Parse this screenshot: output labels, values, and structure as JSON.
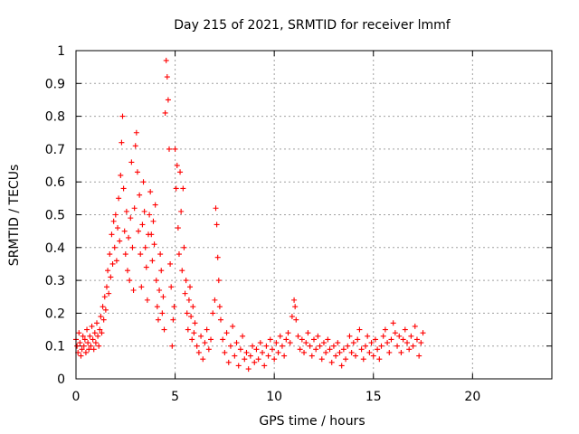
{
  "chart_data": {
    "type": "scatter",
    "title": "Day 215 of 2021, SRMTID for receiver lmmf",
    "xlabel": "GPS time / hours",
    "ylabel": "SRMTID / TECUs",
    "xlim": [
      0,
      24
    ],
    "ylim": [
      0,
      1
    ],
    "xticks": [
      "0",
      "5",
      "10",
      "15",
      "20"
    ],
    "yticks": [
      "0",
      "0.1",
      "0.2",
      "0.3",
      "0.4",
      "0.5",
      "0.6",
      "0.7",
      "0.8",
      "0.9",
      "1"
    ],
    "grid": true,
    "marker": "+",
    "color": "#ff0000",
    "series": [
      {
        "name": "SRMTID",
        "points": [
          [
            0.0,
            0.12
          ],
          [
            0.05,
            0.1
          ],
          [
            0.1,
            0.08
          ],
          [
            0.15,
            0.14
          ],
          [
            0.2,
            0.11
          ],
          [
            0.25,
            0.07
          ],
          [
            0.3,
            0.09
          ],
          [
            0.35,
            0.13
          ],
          [
            0.4,
            0.1
          ],
          [
            0.45,
            0.12
          ],
          [
            0.5,
            0.08
          ],
          [
            0.55,
            0.15
          ],
          [
            0.6,
            0.11
          ],
          [
            0.65,
            0.09
          ],
          [
            0.7,
            0.13
          ],
          [
            0.75,
            0.1
          ],
          [
            0.8,
            0.16
          ],
          [
            0.85,
            0.12
          ],
          [
            0.9,
            0.09
          ],
          [
            0.95,
            0.14
          ],
          [
            1.0,
            0.11
          ],
          [
            1.05,
            0.17
          ],
          [
            1.1,
            0.13
          ],
          [
            1.15,
            0.1
          ],
          [
            1.2,
            0.15
          ],
          [
            1.25,
            0.19
          ],
          [
            1.3,
            0.14
          ],
          [
            1.35,
            0.22
          ],
          [
            1.4,
            0.18
          ],
          [
            1.45,
            0.25
          ],
          [
            1.5,
            0.21
          ],
          [
            1.55,
            0.28
          ],
          [
            1.6,
            0.33
          ],
          [
            1.65,
            0.26
          ],
          [
            1.7,
            0.38
          ],
          [
            1.75,
            0.31
          ],
          [
            1.8,
            0.44
          ],
          [
            1.85,
            0.35
          ],
          [
            1.9,
            0.48
          ],
          [
            1.95,
            0.4
          ],
          [
            2.0,
            0.5
          ],
          [
            2.05,
            0.36
          ],
          [
            2.1,
            0.46
          ],
          [
            2.15,
            0.55
          ],
          [
            2.2,
            0.42
          ],
          [
            2.25,
            0.62
          ],
          [
            2.3,
            0.72
          ],
          [
            2.35,
            0.8
          ],
          [
            2.4,
            0.58
          ],
          [
            2.45,
            0.45
          ],
          [
            2.5,
            0.38
          ],
          [
            2.55,
            0.51
          ],
          [
            2.6,
            0.33
          ],
          [
            2.65,
            0.43
          ],
          [
            2.7,
            0.3
          ],
          [
            2.75,
            0.49
          ],
          [
            2.8,
            0.66
          ],
          [
            2.85,
            0.4
          ],
          [
            2.9,
            0.27
          ],
          [
            2.95,
            0.52
          ],
          [
            3.0,
            0.71
          ],
          [
            3.05,
            0.75
          ],
          [
            3.1,
            0.63
          ],
          [
            3.15,
            0.45
          ],
          [
            3.2,
            0.56
          ],
          [
            3.25,
            0.38
          ],
          [
            3.3,
            0.28
          ],
          [
            3.35,
            0.47
          ],
          [
            3.4,
            0.6
          ],
          [
            3.45,
            0.51
          ],
          [
            3.5,
            0.4
          ],
          [
            3.55,
            0.34
          ],
          [
            3.6,
            0.24
          ],
          [
            3.65,
            0.44
          ],
          [
            3.7,
            0.5
          ],
          [
            3.75,
            0.57
          ],
          [
            3.8,
            0.44
          ],
          [
            3.85,
            0.36
          ],
          [
            3.9,
            0.48
          ],
          [
            3.95,
            0.41
          ],
          [
            4.0,
            0.53
          ],
          [
            4.05,
            0.3
          ],
          [
            4.1,
            0.22
          ],
          [
            4.15,
            0.18
          ],
          [
            4.2,
            0.27
          ],
          [
            4.25,
            0.38
          ],
          [
            4.3,
            0.33
          ],
          [
            4.35,
            0.2
          ],
          [
            4.4,
            0.25
          ],
          [
            4.45,
            0.15
          ],
          [
            4.5,
            0.81
          ],
          [
            4.55,
            0.97
          ],
          [
            4.6,
            0.92
          ],
          [
            4.65,
            0.85
          ],
          [
            4.7,
            0.7
          ],
          [
            4.75,
            0.35
          ],
          [
            4.8,
            0.28
          ],
          [
            4.85,
            0.1
          ],
          [
            4.9,
            0.18
          ],
          [
            4.95,
            0.22
          ],
          [
            5.0,
            0.7
          ],
          [
            5.05,
            0.58
          ],
          [
            5.1,
            0.65
          ],
          [
            5.15,
            0.46
          ],
          [
            5.2,
            0.38
          ],
          [
            5.25,
            0.63
          ],
          [
            5.3,
            0.51
          ],
          [
            5.35,
            0.33
          ],
          [
            5.4,
            0.58
          ],
          [
            5.45,
            0.4
          ],
          [
            5.5,
            0.26
          ],
          [
            5.55,
            0.3
          ],
          [
            5.6,
            0.2
          ],
          [
            5.65,
            0.15
          ],
          [
            5.7,
            0.24
          ],
          [
            5.75,
            0.28
          ],
          [
            5.8,
            0.19
          ],
          [
            5.85,
            0.12
          ],
          [
            5.9,
            0.22
          ],
          [
            5.95,
            0.14
          ],
          [
            6.0,
            0.17
          ],
          [
            6.1,
            0.1
          ],
          [
            6.2,
            0.08
          ],
          [
            6.3,
            0.13
          ],
          [
            6.4,
            0.06
          ],
          [
            6.5,
            0.11
          ],
          [
            6.6,
            0.15
          ],
          [
            6.7,
            0.09
          ],
          [
            6.8,
            0.12
          ],
          [
            6.9,
            0.2
          ],
          [
            7.0,
            0.24
          ],
          [
            7.05,
            0.52
          ],
          [
            7.1,
            0.47
          ],
          [
            7.15,
            0.37
          ],
          [
            7.2,
            0.3
          ],
          [
            7.25,
            0.22
          ],
          [
            7.3,
            0.18
          ],
          [
            7.4,
            0.12
          ],
          [
            7.5,
            0.08
          ],
          [
            7.6,
            0.14
          ],
          [
            7.7,
            0.05
          ],
          [
            7.8,
            0.1
          ],
          [
            7.9,
            0.16
          ],
          [
            8.0,
            0.07
          ],
          [
            8.1,
            0.11
          ],
          [
            8.2,
            0.04
          ],
          [
            8.3,
            0.09
          ],
          [
            8.4,
            0.13
          ],
          [
            8.5,
            0.06
          ],
          [
            8.6,
            0.08
          ],
          [
            8.7,
            0.03
          ],
          [
            8.8,
            0.07
          ],
          [
            8.9,
            0.1
          ],
          [
            9.0,
            0.05
          ],
          [
            9.1,
            0.09
          ],
          [
            9.2,
            0.06
          ],
          [
            9.3,
            0.11
          ],
          [
            9.4,
            0.08
          ],
          [
            9.5,
            0.04
          ],
          [
            9.6,
            0.1
          ],
          [
            9.7,
            0.07
          ],
          [
            9.8,
            0.12
          ],
          [
            9.9,
            0.09
          ],
          [
            10.0,
            0.06
          ],
          [
            10.1,
            0.11
          ],
          [
            10.2,
            0.08
          ],
          [
            10.3,
            0.13
          ],
          [
            10.4,
            0.1
          ],
          [
            10.5,
            0.07
          ],
          [
            10.6,
            0.12
          ],
          [
            10.7,
            0.14
          ],
          [
            10.8,
            0.11
          ],
          [
            10.9,
            0.19
          ],
          [
            11.0,
            0.24
          ],
          [
            11.05,
            0.22
          ],
          [
            11.1,
            0.18
          ],
          [
            11.2,
            0.13
          ],
          [
            11.3,
            0.09
          ],
          [
            11.4,
            0.12
          ],
          [
            11.5,
            0.08
          ],
          [
            11.6,
            0.11
          ],
          [
            11.7,
            0.14
          ],
          [
            11.8,
            0.1
          ],
          [
            11.9,
            0.07
          ],
          [
            12.0,
            0.12
          ],
          [
            12.1,
            0.09
          ],
          [
            12.2,
            0.13
          ],
          [
            12.3,
            0.1
          ],
          [
            12.4,
            0.06
          ],
          [
            12.5,
            0.11
          ],
          [
            12.6,
            0.08
          ],
          [
            12.7,
            0.12
          ],
          [
            12.8,
            0.09
          ],
          [
            12.9,
            0.05
          ],
          [
            13.0,
            0.1
          ],
          [
            13.1,
            0.07
          ],
          [
            13.2,
            0.11
          ],
          [
            13.3,
            0.08
          ],
          [
            13.4,
            0.04
          ],
          [
            13.5,
            0.09
          ],
          [
            13.6,
            0.06
          ],
          [
            13.7,
            0.1
          ],
          [
            13.8,
            0.13
          ],
          [
            13.9,
            0.08
          ],
          [
            14.0,
            0.11
          ],
          [
            14.1,
            0.07
          ],
          [
            14.2,
            0.12
          ],
          [
            14.3,
            0.15
          ],
          [
            14.4,
            0.09
          ],
          [
            14.5,
            0.06
          ],
          [
            14.6,
            0.1
          ],
          [
            14.7,
            0.13
          ],
          [
            14.8,
            0.08
          ],
          [
            14.9,
            0.11
          ],
          [
            15.0,
            0.07
          ],
          [
            15.1,
            0.12
          ],
          [
            15.2,
            0.09
          ],
          [
            15.3,
            0.06
          ],
          [
            15.4,
            0.1
          ],
          [
            15.5,
            0.13
          ],
          [
            15.6,
            0.15
          ],
          [
            15.7,
            0.11
          ],
          [
            15.8,
            0.08
          ],
          [
            15.9,
            0.12
          ],
          [
            16.0,
            0.17
          ],
          [
            16.1,
            0.14
          ],
          [
            16.2,
            0.1
          ],
          [
            16.3,
            0.13
          ],
          [
            16.4,
            0.08
          ],
          [
            16.5,
            0.12
          ],
          [
            16.6,
            0.15
          ],
          [
            16.7,
            0.11
          ],
          [
            16.8,
            0.09
          ],
          [
            16.9,
            0.13
          ],
          [
            17.0,
            0.1
          ],
          [
            17.1,
            0.16
          ],
          [
            17.2,
            0.12
          ],
          [
            17.3,
            0.07
          ],
          [
            17.4,
            0.11
          ],
          [
            17.5,
            0.14
          ]
        ]
      }
    ]
  }
}
